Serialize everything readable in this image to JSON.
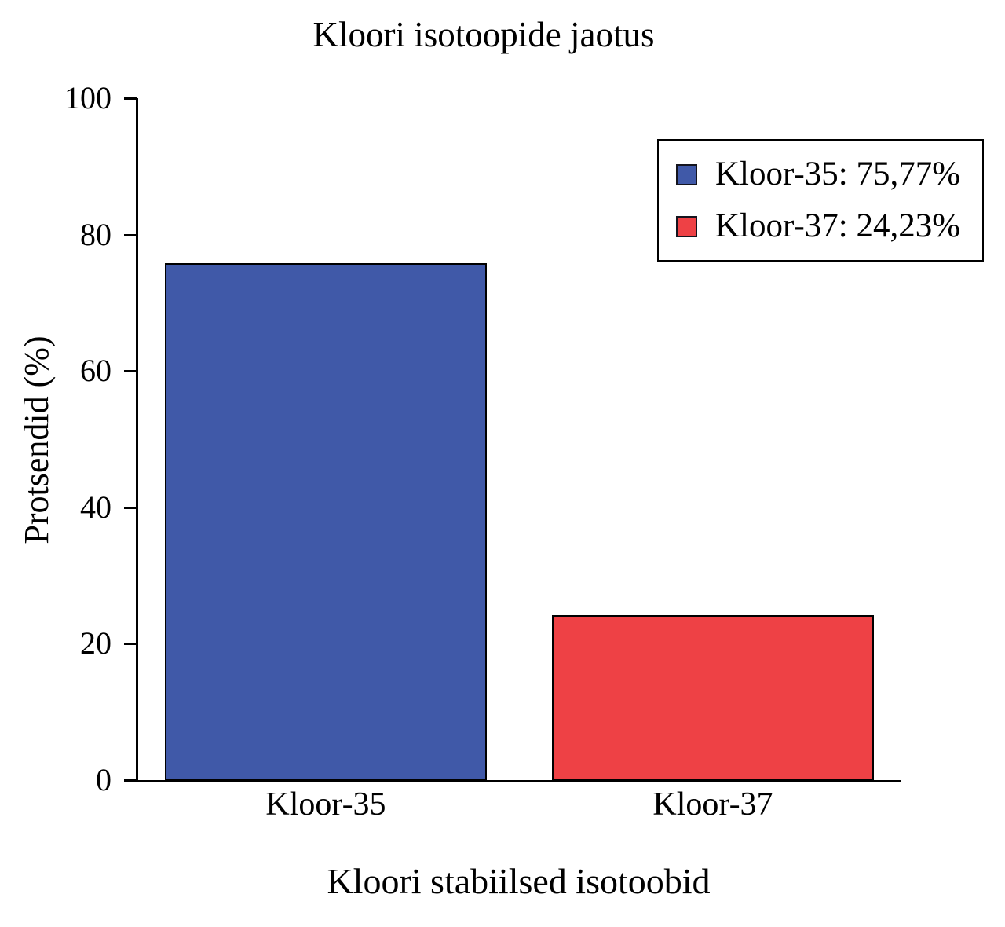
{
  "figure": {
    "title": "Kloori isotoopide jaotus",
    "xlabel": "Kloori stabiilsed isotoobid",
    "ylabel": "Protsendid (%)"
  },
  "legend": {
    "items": [
      {
        "label": "Kloor-35: 75,77%",
        "color": "#4059A8"
      },
      {
        "label": "Kloor-37: 24,23%",
        "color": "#EE4145"
      }
    ]
  },
  "chart_data": {
    "type": "bar",
    "title": "Kloori isotoopide jaotus",
    "xlabel": "Kloori stabiilsed isotoobid",
    "ylabel": "Protsendid (%)",
    "categories": [
      "Kloor-35",
      "Kloor-37"
    ],
    "values": [
      75.77,
      24.23
    ],
    "value_labels": [
      "75,77%",
      "24,23%"
    ],
    "series_colors": [
      "#4059A8",
      "#EE4145"
    ],
    "bar_edge_color": "#000000",
    "ylim": [
      0,
      100
    ],
    "yticks": [
      0,
      20,
      40,
      60,
      80,
      100
    ],
    "grid": false,
    "legend_position": "upper right"
  }
}
